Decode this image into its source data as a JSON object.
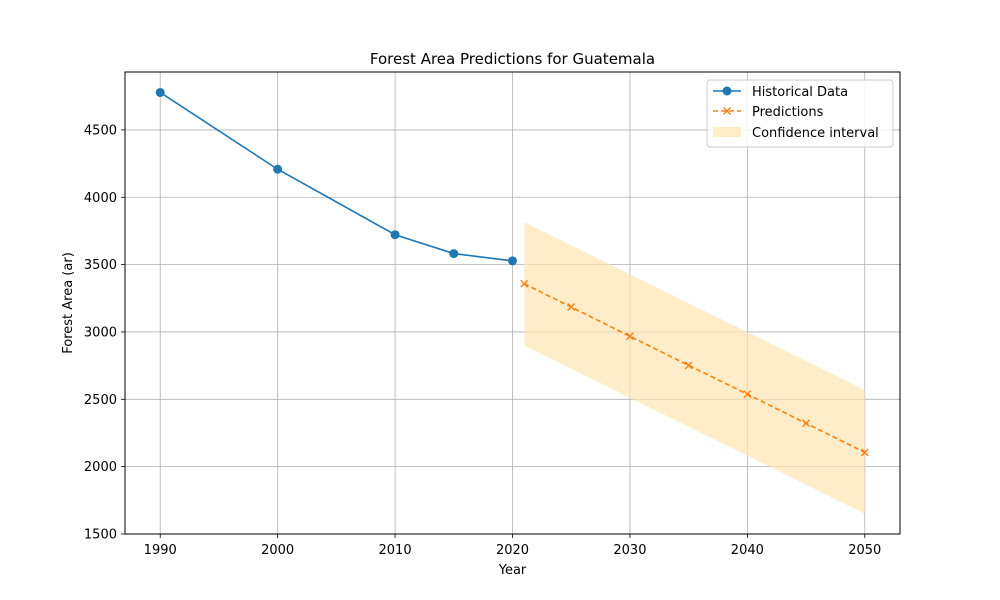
{
  "chart_data": {
    "type": "line",
    "title": "Forest Area Predictions for Guatemala",
    "xlabel": "Year",
    "ylabel": "Forest Area (ar)",
    "xlim": [
      1987,
      2053
    ],
    "ylim": [
      1500,
      4930
    ],
    "xticks": [
      1990,
      2000,
      2010,
      2020,
      2030,
      2040,
      2050
    ],
    "yticks": [
      1500,
      2000,
      2500,
      3000,
      3500,
      4000,
      4500
    ],
    "grid": true,
    "legend_position": "top-right",
    "series": [
      {
        "name": "Historical Data",
        "color": "#1f77b4",
        "marker": "circle",
        "linestyle": "solid",
        "x": [
          1990,
          2000,
          2010,
          2015,
          2020
        ],
        "y": [
          4778,
          4208,
          3722,
          3582,
          3528
        ]
      },
      {
        "name": "Predictions",
        "color": "#ff7f0e",
        "marker": "x",
        "linestyle": "dashed",
        "x": [
          2021,
          2025,
          2030,
          2035,
          2040,
          2045,
          2050
        ],
        "y": [
          3358,
          3185,
          2968,
          2752,
          2538,
          2322,
          2106
        ]
      }
    ],
    "confidence_interval": {
      "name": "Confidence interval",
      "color": "#ffe5b4",
      "x": [
        2021,
        2050
      ],
      "lower": [
        2900,
        1650
      ],
      "upper": [
        3815,
        2570
      ]
    }
  }
}
